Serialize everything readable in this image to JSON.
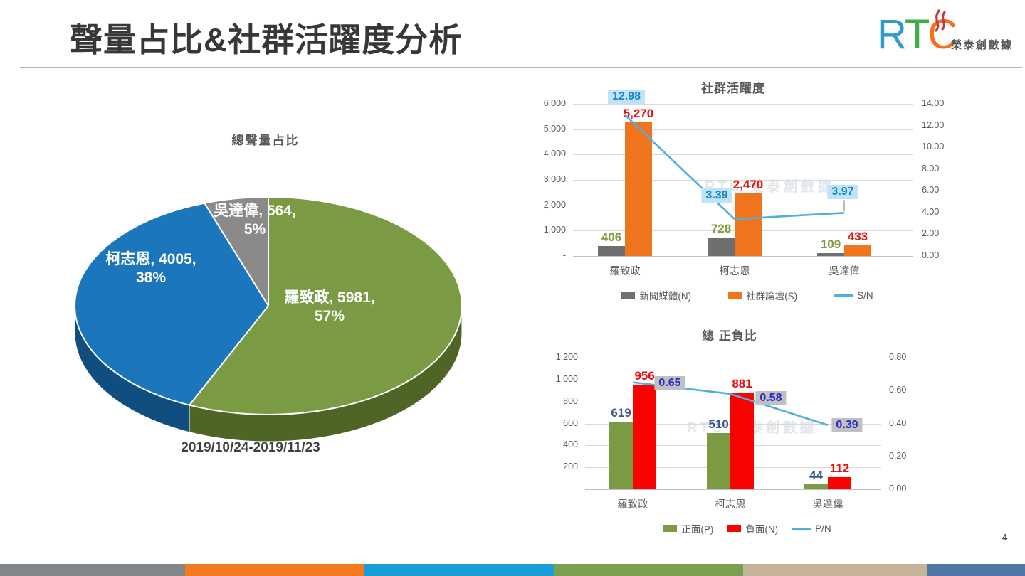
{
  "header": {
    "title": "聲量占比&社群活躍度分析"
  },
  "logo": {
    "r": "R",
    "t": "T",
    "c": "C",
    "company": "榮泰創數據",
    "r_color": "#2f9ad0",
    "t_color": "#3fae4a",
    "c_color": "#f4701d",
    "flame_color": "#c13a45"
  },
  "pie": {
    "title": "總聲量占比",
    "date_range": "2019/10/24-2019/11/23",
    "labels": [
      {
        "line1": "羅致政, 5981,",
        "line2": "57%"
      },
      {
        "line1": "柯志恩, 4005,",
        "line2": "38%"
      },
      {
        "line1": "吳達偉, 564,",
        "line2": "5%"
      }
    ]
  },
  "watermark": {
    "text": "RTC 榮泰創數據"
  },
  "footer": {
    "page_number": "4",
    "stripe_colors": [
      "#828689",
      "#f57921",
      "#189fd9",
      "#7a9f50",
      "#c6b49a",
      "#4e77a5"
    ]
  },
  "chart_data": [
    {
      "type": "pie",
      "title": "總聲量占比",
      "categories": [
        "羅致政",
        "柯志恩",
        "吳達偉"
      ],
      "values": [
        5981,
        4005,
        564
      ],
      "percent_labels": [
        "57%",
        "38%",
        "5%"
      ],
      "colors": [
        "#7a9a43",
        "#1b76bc",
        "#8a8a8a"
      ],
      "side_colors": [
        "#4f6526",
        "#114e80",
        "#5f5f5f"
      ]
    },
    {
      "type": "combo-bar-line",
      "title": "社群活躍度",
      "categories": [
        "羅致政",
        "柯志恩",
        "吳達偉"
      ],
      "series": [
        {
          "name": "新聞媒體(N)",
          "kind": "bar",
          "color": "#6f6f6f",
          "values": [
            406,
            728,
            109
          ],
          "labels": [
            "406",
            "728",
            "109"
          ],
          "label_color": "#7c9b3c"
        },
        {
          "name": "社群論壇(S)",
          "kind": "bar",
          "color": "#f0731d",
          "values": [
            5270,
            2470,
            433
          ],
          "labels": [
            "5,270",
            "2,470",
            "433"
          ],
          "label_color": "#e8100c"
        },
        {
          "name": "S/N",
          "kind": "line",
          "color": "#4fb0df",
          "values": [
            12.98,
            3.39,
            3.97
          ],
          "labels": [
            "12.98",
            "3.39",
            "3.97"
          ],
          "label_color": "#1c86c8",
          "label_bg": "#bfe3f8",
          "axis": "right"
        }
      ],
      "left_axis": {
        "max": 6000,
        "ticks": [
          "6,000",
          "5,000",
          "4,000",
          "3,000",
          "2,000",
          "1,000",
          "-"
        ]
      },
      "right_axis": {
        "max": 14,
        "ticks": [
          "14.00",
          "12.00",
          "10.00",
          "8.00",
          "6.00",
          "4.00",
          "2.00",
          "0.00"
        ]
      },
      "legend_position": "bottom",
      "grid": true
    },
    {
      "type": "combo-bar-line",
      "title": "總 正負比",
      "categories": [
        "羅致政",
        "柯志恩",
        "吳達偉"
      ],
      "series": [
        {
          "name": "正面(P)",
          "kind": "bar",
          "color": "#7a9a43",
          "values": [
            619,
            510,
            44
          ],
          "labels": [
            "619",
            "510",
            "44"
          ],
          "label_color": "#41568c"
        },
        {
          "name": "負面(N)",
          "kind": "bar",
          "color": "#f90300",
          "values": [
            956,
            881,
            112
          ],
          "labels": [
            "956",
            "881",
            "112"
          ],
          "label_color": "#e8100c"
        },
        {
          "name": "P/N",
          "kind": "line",
          "color": "#4fb0df",
          "values": [
            0.65,
            0.58,
            0.39
          ],
          "labels": [
            "0.65",
            "0.58",
            "0.39"
          ],
          "label_color": "#2b2bc8",
          "label_bg": "#c0c0c0",
          "axis": "right"
        }
      ],
      "left_axis": {
        "max": 1200,
        "ticks": [
          "1,200",
          "1,000",
          "800",
          "600",
          "400",
          "200",
          "-"
        ]
      },
      "right_axis": {
        "max": 0.8,
        "ticks": [
          "0.80",
          "0.60",
          "0.40",
          "0.20",
          "0.00"
        ]
      },
      "legend_position": "bottom",
      "grid": true
    }
  ]
}
